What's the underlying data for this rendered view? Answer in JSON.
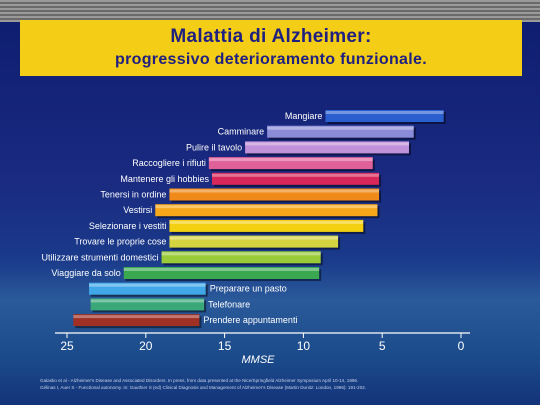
{
  "title": {
    "line1": "Malattia di Alzheimer:",
    "line2": "progressivo deterioramento funzionale."
  },
  "chart_data": {
    "type": "bar",
    "orientation": "horizontal-range",
    "xlabel": "MMSE",
    "x_reversed": true,
    "xlim": [
      0,
      25
    ],
    "xticks": [
      25,
      20,
      15,
      10,
      5,
      0
    ],
    "grid": false,
    "legend": "none",
    "bars": [
      {
        "label": "Mangiare",
        "start": 8.6,
        "end": 1.1,
        "color": "#2a5fd0"
      },
      {
        "label": "Camminare",
        "start": 12.3,
        "end": 3.0,
        "color": "#8a8cd8"
      },
      {
        "label": "Pulire il tavolo",
        "start": 13.7,
        "end": 3.3,
        "color": "#c090d8"
      },
      {
        "label": "Raccogliere i rifiuti",
        "start": 16.0,
        "end": 5.6,
        "color": "#e0609a"
      },
      {
        "label": "Mantenere gli hobbies",
        "start": 15.8,
        "end": 5.2,
        "color": "#d8285a"
      },
      {
        "label": "Tenersi in ordine",
        "start": 18.5,
        "end": 5.2,
        "color": "#f08a1a"
      },
      {
        "label": "Vestirsi",
        "start": 19.4,
        "end": 5.3,
        "color": "#f6a81a"
      },
      {
        "label": "Selezionare i vestiti",
        "start": 18.5,
        "end": 6.2,
        "color": "#f4d012"
      },
      {
        "label": "Trovare le proprie cose",
        "start": 18.5,
        "end": 7.8,
        "color": "#d4d440"
      },
      {
        "label": "Utilizzare strumenti domestici",
        "start": 19.0,
        "end": 8.9,
        "color": "#9acc3a"
      },
      {
        "label": "Viaggiare da solo",
        "start": 21.4,
        "end": 9.0,
        "color": "#3aa850"
      },
      {
        "label": "Preparare un pasto",
        "start": 23.6,
        "end": 16.2,
        "color": "#40a8e8"
      },
      {
        "label": "Telefonare",
        "start": 23.5,
        "end": 16.3,
        "color": "#3aa878"
      },
      {
        "label": "Prendere appuntamenti",
        "start": 24.6,
        "end": 16.6,
        "color": "#a03024"
      }
    ]
  },
  "footnotes": [
    "Galasko et al - Alzheimer's Disease and Associated Disorders. In press, from data presented at the Nice/Springfield Alzheimer Symposium April 10-14, 1996.",
    "Gélinas I, Auer S - Functional autonomy. In: Gauthier S (ed) Clinical Diagnosis and Management of Alzheimer's Disease (Martin Dunitz: London, 1996): 191-202."
  ]
}
